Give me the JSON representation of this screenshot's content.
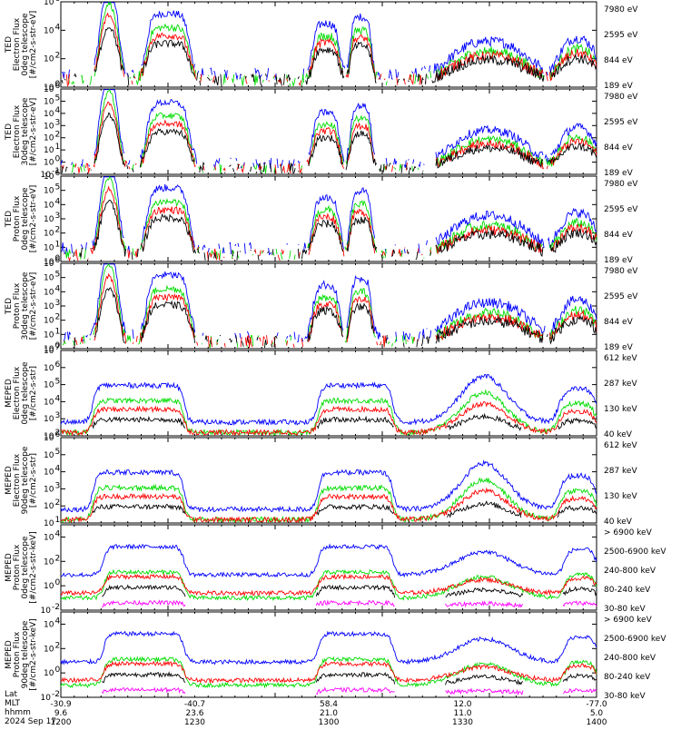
{
  "chart_data": [
    {
      "type": "line",
      "panel": 1,
      "ylabel": [
        "TED",
        "Electron Flux",
        "0deg telescope",
        "[#/cm2-s-str-eV]"
      ],
      "ytick_exponents": [
        0,
        2,
        4,
        6
      ],
      "ylim_exp": [
        0,
        6
      ],
      "series": [
        {
          "name": "7980 eV",
          "color": "#000000"
        },
        {
          "name": "2595 eV",
          "color": "#ff0000"
        },
        {
          "name": "844 eV",
          "color": "#00dd00"
        },
        {
          "name": "189 eV",
          "color": "#0000ff"
        }
      ]
    },
    {
      "type": "line",
      "panel": 2,
      "ylabel": [
        "TED",
        "Electron Flux",
        "30deg telescope",
        "[#/cm2-s-str-eV]"
      ],
      "ytick_exponents": [
        -1,
        0,
        1,
        2,
        3,
        4,
        5,
        6
      ],
      "ylim_exp": [
        -1,
        6
      ],
      "series": [
        {
          "name": "7980 eV",
          "color": "#000000"
        },
        {
          "name": "2595 eV",
          "color": "#ff0000"
        },
        {
          "name": "844 eV",
          "color": "#00dd00"
        },
        {
          "name": "189 eV",
          "color": "#0000ff"
        }
      ]
    },
    {
      "type": "line",
      "panel": 3,
      "ylabel": [
        "TED",
        "Proton Flux",
        "0deg telescope",
        "[#/cm2-s-str-eV]"
      ],
      "ytick_exponents": [
        0,
        1,
        2,
        3,
        4,
        5,
        6
      ],
      "ylim_exp": [
        0,
        6
      ],
      "series": [
        {
          "name": "7980 eV",
          "color": "#000000"
        },
        {
          "name": "2595 eV",
          "color": "#ff0000"
        },
        {
          "name": "844 eV",
          "color": "#00dd00"
        },
        {
          "name": "189 eV",
          "color": "#0000ff"
        }
      ]
    },
    {
      "type": "line",
      "panel": 4,
      "ylabel": [
        "TED",
        "Proton Flux",
        "30deg telescope",
        "[#/cm2-s-str-eV]"
      ],
      "ytick_exponents": [
        0,
        1,
        2,
        3,
        4,
        5,
        6
      ],
      "ylim_exp": [
        0,
        6
      ],
      "series": [
        {
          "name": "7980 eV",
          "color": "#000000"
        },
        {
          "name": "2595 eV",
          "color": "#ff0000"
        },
        {
          "name": "844 eV",
          "color": "#00dd00"
        },
        {
          "name": "189 eV",
          "color": "#0000ff"
        }
      ]
    },
    {
      "type": "line",
      "panel": 5,
      "ylabel": [
        "MEPED",
        "Electron Flux",
        "0deg telescope",
        "[#/cm2-s-str]"
      ],
      "ytick_exponents": [
        2,
        3,
        4,
        5,
        6,
        7
      ],
      "ylim_exp": [
        2,
        7
      ],
      "series": [
        {
          "name": "612 keV",
          "color": "#000000"
        },
        {
          "name": "287 keV",
          "color": "#ff0000"
        },
        {
          "name": "130 keV",
          "color": "#00dd00"
        },
        {
          "name": "40 keV",
          "color": "#0000ff"
        }
      ]
    },
    {
      "type": "line",
      "panel": 6,
      "ylabel": [
        "MEPED",
        "Electron Flux",
        "90deg telescope",
        "[#/cm2-s-str]"
      ],
      "ytick_exponents": [
        1,
        2,
        3,
        4,
        5,
        6
      ],
      "ylim_exp": [
        1,
        6
      ],
      "series": [
        {
          "name": "612 keV",
          "color": "#000000"
        },
        {
          "name": "287 keV",
          "color": "#ff0000"
        },
        {
          "name": "130 keV",
          "color": "#00dd00"
        },
        {
          "name": "40 keV",
          "color": "#0000ff"
        }
      ]
    },
    {
      "type": "line",
      "panel": 7,
      "ylabel": [
        "MEPED",
        "Proton Flux",
        "0deg telescope",
        "[#/cm2-s-str-keV]"
      ],
      "ytick_exponents": [
        -2,
        0,
        2,
        4
      ],
      "ylim_exp": [
        -2,
        5
      ],
      "series": [
        {
          "name": "> 6900 keV",
          "color": "#ff00ff"
        },
        {
          "name": "2500-6900 keV",
          "color": "#000000"
        },
        {
          "name": "240-800 keV",
          "color": "#ff0000"
        },
        {
          "name": "80-240 keV",
          "color": "#00dd00"
        },
        {
          "name": "30-80 keV",
          "color": "#0000ff"
        }
      ]
    },
    {
      "type": "line",
      "panel": 8,
      "ylabel": [
        "MEPED",
        "Proton Flux",
        "90deg telescope",
        "[#/cm2-s-str-keV]"
      ],
      "ytick_exponents": [
        -2,
        0,
        2,
        4
      ],
      "ylim_exp": [
        -2,
        5
      ],
      "series": [
        {
          "name": "> 6900 keV",
          "color": "#ff00ff"
        },
        {
          "name": "2500-6900 keV",
          "color": "#000000"
        },
        {
          "name": "240-800 keV",
          "color": "#ff0000"
        },
        {
          "name": "80-240 keV",
          "color": "#00dd00"
        },
        {
          "name": "30-80 keV",
          "color": "#0000ff"
        }
      ]
    }
  ],
  "x_axis": {
    "row_labels": [
      "Lat",
      "MLT",
      "hhmm"
    ],
    "date": "2024 Sep 17",
    "ticks": [
      {
        "lat": "-30.9",
        "mlt": "9.6",
        "hhmm": "1200"
      },
      {
        "lat": "-40.7",
        "mlt": "23.6",
        "hhmm": "1230"
      },
      {
        "lat": "58.4",
        "mlt": "21.0",
        "hhmm": "1300"
      },
      {
        "lat": "12.0",
        "mlt": "11.0",
        "hhmm": "1330"
      },
      {
        "lat": "-77.0",
        "mlt": "5.0",
        "hhmm": "1400"
      }
    ]
  }
}
